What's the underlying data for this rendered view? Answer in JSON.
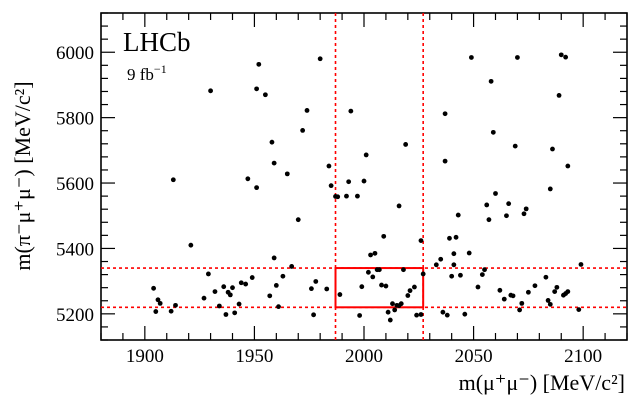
{
  "chart_data": {
    "type": "scatter",
    "title": "",
    "experiment_label": "LHCb",
    "luminosity_label": "9 fb",
    "luminosity_exponent": "−1",
    "xlabel": "m(μ⁺μ⁻) [MeV/c²]",
    "ylabel": "m(π⁻μ⁺μ⁻) [MeV/c²]",
    "xlim": [
      1880,
      2120
    ],
    "ylim": [
      5120,
      6120
    ],
    "x_ticks": [
      1900,
      1950,
      2000,
      2050,
      2100
    ],
    "y_ticks": [
      5200,
      5400,
      5600,
      5800,
      6000
    ],
    "grid": false,
    "colors": {
      "points": "#000000",
      "cuts": "#ff0000"
    },
    "cut_lines": {
      "x": [
        1987,
        2027
      ],
      "y": [
        5220,
        5340
      ]
    },
    "signal_region": {
      "x": [
        1987,
        2027
      ],
      "y": [
        5220,
        5340
      ]
    },
    "points": [
      [
        1904,
        5278
      ],
      [
        1905,
        5207
      ],
      [
        1906,
        5243
      ],
      [
        1907,
        5232
      ],
      [
        1912,
        5208
      ],
      [
        1913,
        5610
      ],
      [
        1914,
        5226
      ],
      [
        1921,
        5410
      ],
      [
        1927,
        5248
      ],
      [
        1929,
        5322
      ],
      [
        1930,
        5882
      ],
      [
        1932,
        5268
      ],
      [
        1934,
        5224
      ],
      [
        1936,
        5283
      ],
      [
        1937,
        5198
      ],
      [
        1938,
        5266
      ],
      [
        1939,
        5258
      ],
      [
        1940,
        5280
      ],
      [
        1941,
        5203
      ],
      [
        1943,
        5230
      ],
      [
        1944,
        5295
      ],
      [
        1946,
        5291
      ],
      [
        1947,
        5613
      ],
      [
        1949,
        5311
      ],
      [
        1951,
        5586
      ],
      [
        1951,
        5888
      ],
      [
        1952,
        5963
      ],
      [
        1955,
        5870
      ],
      [
        1957,
        5255
      ],
      [
        1958,
        5725
      ],
      [
        1959,
        5661
      ],
      [
        1959,
        5371
      ],
      [
        1960,
        5287
      ],
      [
        1961,
        5222
      ],
      [
        1963,
        5315
      ],
      [
        1965,
        5628
      ],
      [
        1967,
        5345
      ],
      [
        1970,
        5488
      ],
      [
        1972,
        5761
      ],
      [
        1974,
        5822
      ],
      [
        1976,
        5277
      ],
      [
        1977,
        5197
      ],
      [
        1978,
        5299
      ],
      [
        1980,
        5980
      ],
      [
        1983,
        5276
      ],
      [
        1984,
        5652
      ],
      [
        1985,
        5592
      ],
      [
        1987,
        5559
      ],
      [
        1988,
        5558
      ],
      [
        1989,
        5259
      ],
      [
        1992,
        5560
      ],
      [
        1993,
        5604
      ],
      [
        1994,
        5820
      ],
      [
        1997,
        5560
      ],
      [
        1998,
        5195
      ],
      [
        1999,
        5283
      ],
      [
        2000,
        5606
      ],
      [
        2001,
        5686
      ],
      [
        2002,
        5327
      ],
      [
        2003,
        5380
      ],
      [
        2004,
        5313
      ],
      [
        2005,
        5385
      ],
      [
        2006,
        5335
      ],
      [
        2007,
        5335
      ],
      [
        2008,
        5288
      ],
      [
        2009,
        5437
      ],
      [
        2010,
        5285
      ],
      [
        2011,
        5205
      ],
      [
        2012,
        5181
      ],
      [
        2013,
        5231
      ],
      [
        2014,
        5212
      ],
      [
        2015,
        5226
      ],
      [
        2016,
        5530
      ],
      [
        2016,
        5225
      ],
      [
        2017,
        5231
      ],
      [
        2018,
        5335
      ],
      [
        2019,
        5718
      ],
      [
        2020,
        5256
      ],
      [
        2021,
        5271
      ],
      [
        2023,
        5282
      ],
      [
        2024,
        5196
      ],
      [
        2026,
        5198
      ],
      [
        2026,
        5424
      ],
      [
        2027,
        5322
      ],
      [
        2033,
        5350
      ],
      [
        2035,
        5367
      ],
      [
        2036,
        5205
      ],
      [
        2037,
        5812
      ],
      [
        2037,
        5667
      ],
      [
        2038,
        5196
      ],
      [
        2039,
        5431
      ],
      [
        2040,
        5315
      ],
      [
        2041,
        5384
      ],
      [
        2041,
        5350
      ],
      [
        2042,
        5434
      ],
      [
        2043,
        5502
      ],
      [
        2044,
        5318
      ],
      [
        2046,
        5199
      ],
      [
        2048,
        5386
      ],
      [
        2049,
        5984
      ],
      [
        2052,
        5282
      ],
      [
        2054,
        5320
      ],
      [
        2055,
        5335
      ],
      [
        2056,
        5533
      ],
      [
        2057,
        5488
      ],
      [
        2058,
        5911
      ],
      [
        2059,
        5755
      ],
      [
        2060,
        5568
      ],
      [
        2062,
        5272
      ],
      [
        2064,
        5245
      ],
      [
        2065,
        5500
      ],
      [
        2066,
        5537
      ],
      [
        2067,
        5257
      ],
      [
        2068,
        5255
      ],
      [
        2069,
        5713
      ],
      [
        2070,
        5984
      ],
      [
        2071,
        5212
      ],
      [
        2072,
        5232
      ],
      [
        2073,
        5506
      ],
      [
        2074,
        5521
      ],
      [
        2075,
        5266
      ],
      [
        2078,
        5286
      ],
      [
        2083,
        5312
      ],
      [
        2084,
        5241
      ],
      [
        2085,
        5582
      ],
      [
        2085,
        5229
      ],
      [
        2086,
        5704
      ],
      [
        2087,
        5268
      ],
      [
        2088,
        5281
      ],
      [
        2089,
        5868
      ],
      [
        2090,
        5992
      ],
      [
        2091,
        5257
      ],
      [
        2092,
        5262
      ],
      [
        2092,
        5985
      ],
      [
        2093,
        5652
      ],
      [
        2093,
        5268
      ],
      [
        2098,
        5213
      ],
      [
        2099,
        5351
      ]
    ]
  }
}
